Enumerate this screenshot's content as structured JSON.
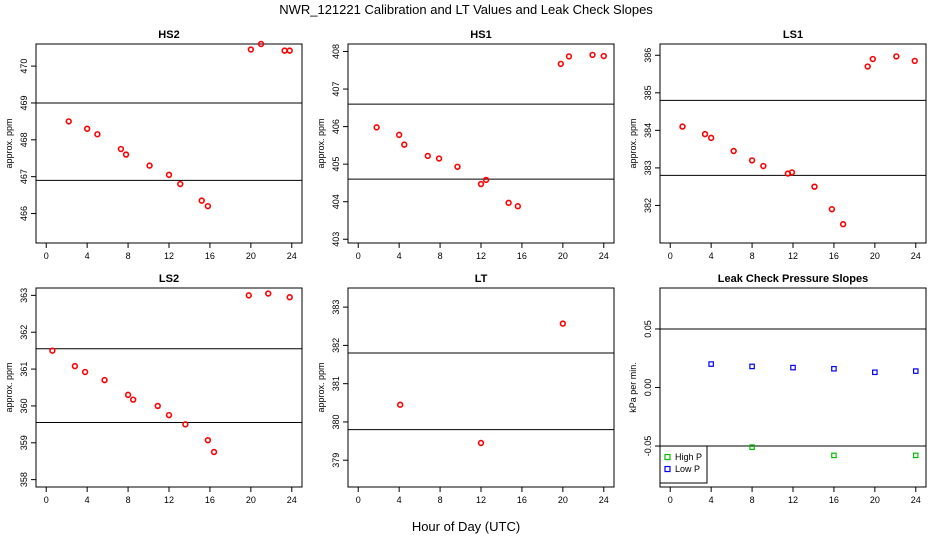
{
  "figure": {
    "title": "NWR_121221  Calibration and LT Values and Leak Check Slopes",
    "xlabel": "Hour of Day (UTC)"
  },
  "chart_data": [
    {
      "type": "scatter",
      "title": "HS2",
      "ylabel": "approx. ppm",
      "xlim": [
        -1,
        25
      ],
      "ylim": [
        465.2,
        470.6
      ],
      "xticks": [
        0,
        4,
        8,
        12,
        16,
        20,
        24
      ],
      "yticks": [
        466,
        467,
        468,
        469,
        470
      ],
      "hlines": [
        469.0,
        466.9
      ],
      "series": [
        {
          "color": "#ff0000",
          "x": [
            2.2,
            4.0,
            5.0,
            7.3,
            7.8,
            10.1,
            12.0,
            13.1,
            15.2,
            15.8,
            20.0,
            21.0,
            23.3,
            23.8
          ],
          "y": [
            468.5,
            468.3,
            468.15,
            467.75,
            467.6,
            467.3,
            467.05,
            466.8,
            466.35,
            466.2,
            470.45,
            470.6,
            470.42,
            470.42
          ]
        }
      ]
    },
    {
      "type": "scatter",
      "title": "HS1",
      "ylabel": "approx. ppm",
      "xlim": [
        -1,
        25
      ],
      "ylim": [
        402.9,
        408.2
      ],
      "xticks": [
        0,
        4,
        8,
        12,
        16,
        20,
        24
      ],
      "yticks": [
        403,
        404,
        405,
        406,
        407,
        408
      ],
      "hlines": [
        406.6,
        404.6
      ],
      "series": [
        {
          "color": "#ff0000",
          "x": [
            1.8,
            4.0,
            4.5,
            6.8,
            7.9,
            9.7,
            12.0,
            12.5,
            14.7,
            15.6,
            19.8,
            20.6,
            22.9,
            24.0
          ],
          "y": [
            405.98,
            405.78,
            405.52,
            405.22,
            405.15,
            404.93,
            404.47,
            404.58,
            403.97,
            403.88,
            407.67,
            407.87,
            407.91,
            407.88
          ]
        }
      ]
    },
    {
      "type": "scatter",
      "title": "LS1",
      "ylabel": "approx. ppm",
      "xlim": [
        -1,
        25
      ],
      "ylim": [
        381.0,
        386.3
      ],
      "xticks": [
        0,
        4,
        8,
        12,
        16,
        20,
        24
      ],
      "yticks": [
        382,
        383,
        384,
        385,
        386
      ],
      "hlines": [
        384.8,
        382.8
      ],
      "series": [
        {
          "color": "#ff0000",
          "x": [
            1.2,
            3.4,
            4.0,
            6.2,
            8.0,
            9.1,
            11.5,
            11.9,
            14.1,
            15.8,
            16.9,
            19.3,
            19.8,
            22.1,
            23.9
          ],
          "y": [
            384.1,
            383.9,
            383.8,
            383.45,
            383.2,
            383.05,
            382.85,
            382.88,
            382.5,
            381.9,
            381.5,
            385.7,
            385.9,
            385.97,
            385.85
          ]
        }
      ]
    },
    {
      "type": "scatter",
      "title": "LS2",
      "ylabel": "approx. ppm",
      "xlim": [
        -1,
        25
      ],
      "ylim": [
        357.8,
        363.2
      ],
      "xticks": [
        0,
        4,
        8,
        12,
        16,
        20,
        24
      ],
      "yticks": [
        358,
        359,
        360,
        361,
        362,
        363
      ],
      "hlines": [
        361.55,
        359.55
      ],
      "series": [
        {
          "color": "#ff0000",
          "x": [
            0.6,
            2.8,
            3.8,
            5.7,
            8.0,
            8.5,
            10.9,
            12.0,
            13.6,
            15.8,
            16.4,
            19.8,
            21.7,
            23.8
          ],
          "y": [
            361.5,
            361.08,
            360.92,
            360.7,
            360.3,
            360.17,
            360.0,
            359.75,
            359.5,
            359.07,
            358.75,
            363.0,
            363.05,
            362.95
          ]
        }
      ]
    },
    {
      "type": "scatter",
      "title": "LT",
      "ylabel": "approx. ppm",
      "xlim": [
        -1,
        25
      ],
      "ylim": [
        378.3,
        383.5
      ],
      "xticks": [
        0,
        4,
        8,
        12,
        16,
        20,
        24
      ],
      "yticks": [
        379,
        380,
        381,
        382,
        383
      ],
      "hlines": [
        381.8,
        379.8
      ],
      "series": [
        {
          "color": "#ff0000",
          "x": [
            4.1,
            12.0,
            20.0
          ],
          "y": [
            380.45,
            379.45,
            382.57
          ]
        }
      ]
    },
    {
      "type": "scatter",
      "title": "Leak Check Pressure Slopes",
      "ylabel": "kPa per min.",
      "xlim": [
        -1,
        25
      ],
      "ylim": [
        -0.085,
        0.085
      ],
      "xticks": [
        0,
        4,
        8,
        12,
        16,
        20,
        24
      ],
      "yticks": [
        -0.05,
        0.0,
        0.05
      ],
      "ytick_labels": [
        "-0.05",
        "0.00",
        "0.05"
      ],
      "hlines": [
        0.05,
        -0.05
      ],
      "legend": {
        "position": "bottom-left",
        "entries": [
          "High P",
          "Low P"
        ]
      },
      "series": [
        {
          "name": "High P",
          "color": "#00c000",
          "x": [
            8.0,
            16.0,
            24.0
          ],
          "y": [
            -0.051,
            -0.058,
            -0.058
          ]
        },
        {
          "name": "Low P",
          "color": "#0000ff",
          "x": [
            4.0,
            8.0,
            12.0,
            16.0,
            20.0,
            24.0
          ],
          "y": [
            0.02,
            0.018,
            0.017,
            0.016,
            0.013,
            0.014
          ]
        }
      ]
    }
  ]
}
